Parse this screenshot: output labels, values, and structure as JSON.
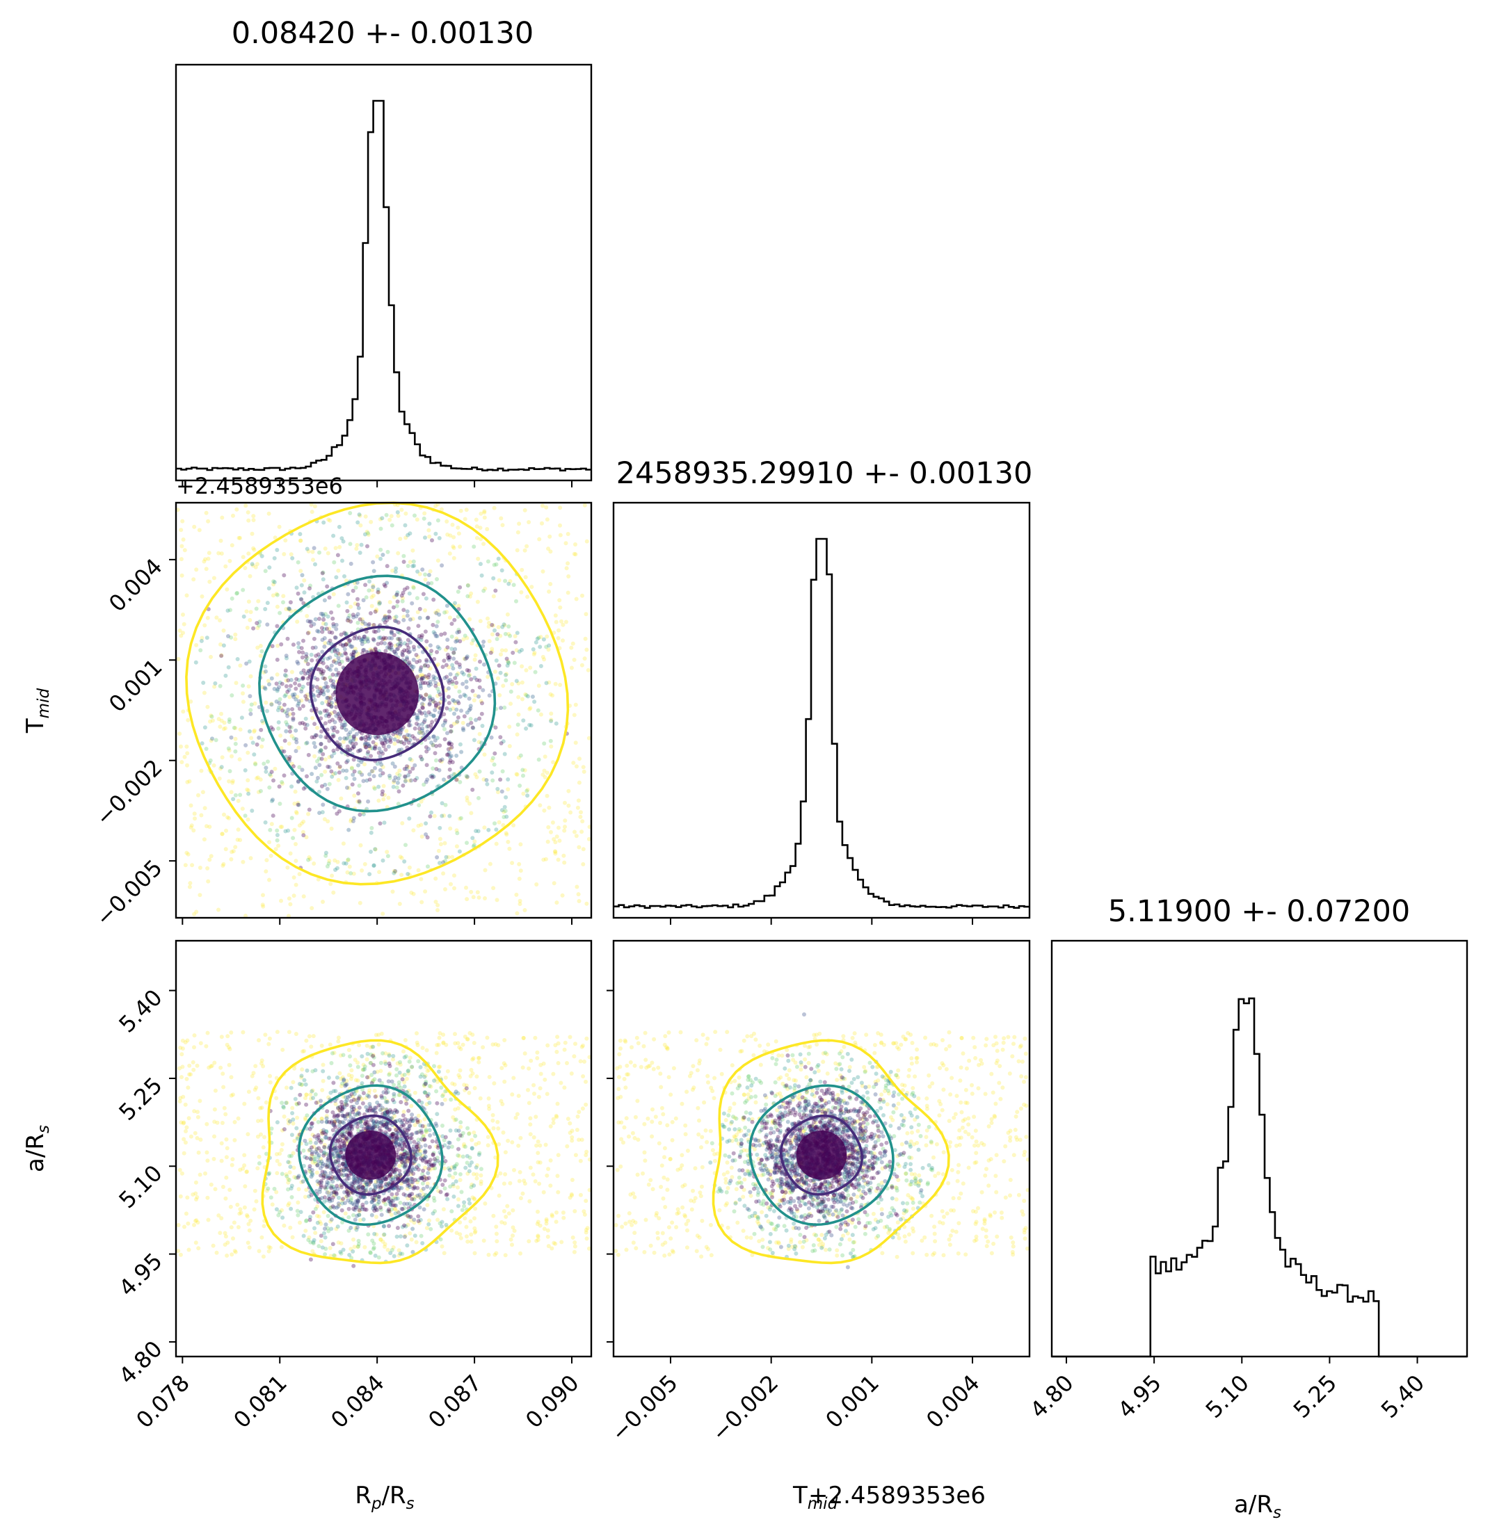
{
  "chart_data": [
    {
      "type": "histogram",
      "title": "0.08420 +- 0.00130",
      "parameter": "Rp/Rs",
      "xlim": [
        0.0778,
        0.0906
      ],
      "peak_x": 0.084,
      "ticks": [
        0.078,
        0.081,
        0.084,
        0.087,
        0.09
      ],
      "tick_labels": [
        "0.078",
        "0.081",
        "0.084",
        "0.087",
        "0.090"
      ]
    },
    {
      "type": "scatter",
      "x_param": "Rp/Rs",
      "y_param": "Tmid",
      "xlim": [
        0.0778,
        0.0906
      ],
      "ylim": [
        -0.0067,
        0.0057
      ],
      "center": [
        0.084,
        0.0
      ],
      "y_offset_text": "+2.4589353e6",
      "y_ticks": [
        0.004,
        0.001,
        -0.002,
        -0.005
      ],
      "y_tick_labels": [
        "0.004",
        "0.001",
        "−0.002",
        "−0.005"
      ],
      "contour_levels": [
        "inner",
        "middle",
        "outer"
      ]
    },
    {
      "type": "histogram",
      "title": "2458935.29910 +- 0.00130",
      "parameter": "Tmid",
      "xlim": [
        -0.0067,
        0.0057
      ],
      "peak_x": -0.0005
    },
    {
      "type": "scatter",
      "x_param": "Rp/Rs",
      "y_param": "a/Rs",
      "xlim": [
        0.0778,
        0.0906
      ],
      "ylim": [
        4.775,
        5.485
      ],
      "center": [
        0.0838,
        5.119
      ],
      "y_ticks": [
        5.4,
        5.25,
        5.1,
        4.95,
        4.8
      ],
      "y_tick_labels": [
        "5.40",
        "5.25",
        "5.10",
        "4.95",
        "4.80"
      ]
    },
    {
      "type": "scatter",
      "x_param": "Tmid",
      "y_param": "a/Rs",
      "xlim": [
        -0.0067,
        0.0057
      ],
      "ylim": [
        4.775,
        5.485
      ],
      "center": [
        -0.0005,
        5.119
      ],
      "x_ticks": [
        -0.005,
        -0.002,
        0.001,
        0.004
      ],
      "x_tick_labels": [
        "−0.005",
        "−0.002",
        "0.001",
        "0.004"
      ],
      "x_offset_text": "+2.4589353e6"
    },
    {
      "type": "histogram",
      "title": "5.11900 +- 0.07200",
      "parameter": "a/Rs",
      "xlim": [
        4.775,
        5.485
      ],
      "peak_x": 5.105,
      "ticks": [
        4.8,
        4.95,
        5.1,
        5.25,
        5.4
      ],
      "tick_labels": [
        "4.80",
        "4.95",
        "5.10",
        "5.25",
        "5.40"
      ]
    }
  ],
  "axis_labels": {
    "rp_main": "R",
    "rp_sub": "p",
    "rp_mid": "/R",
    "rp_sub2": "s",
    "tmid_main": "T",
    "tmid_sub": "mid",
    "ars_main": "a/R",
    "ars_sub": "s",
    "tmid_offset": "+2.4589353e6"
  },
  "colors": {
    "inner_contour": "#472c7a",
    "middle_contour": "#21918c",
    "outer_contour": "#fde725",
    "core": "#440154",
    "hist_line": "#000000"
  }
}
